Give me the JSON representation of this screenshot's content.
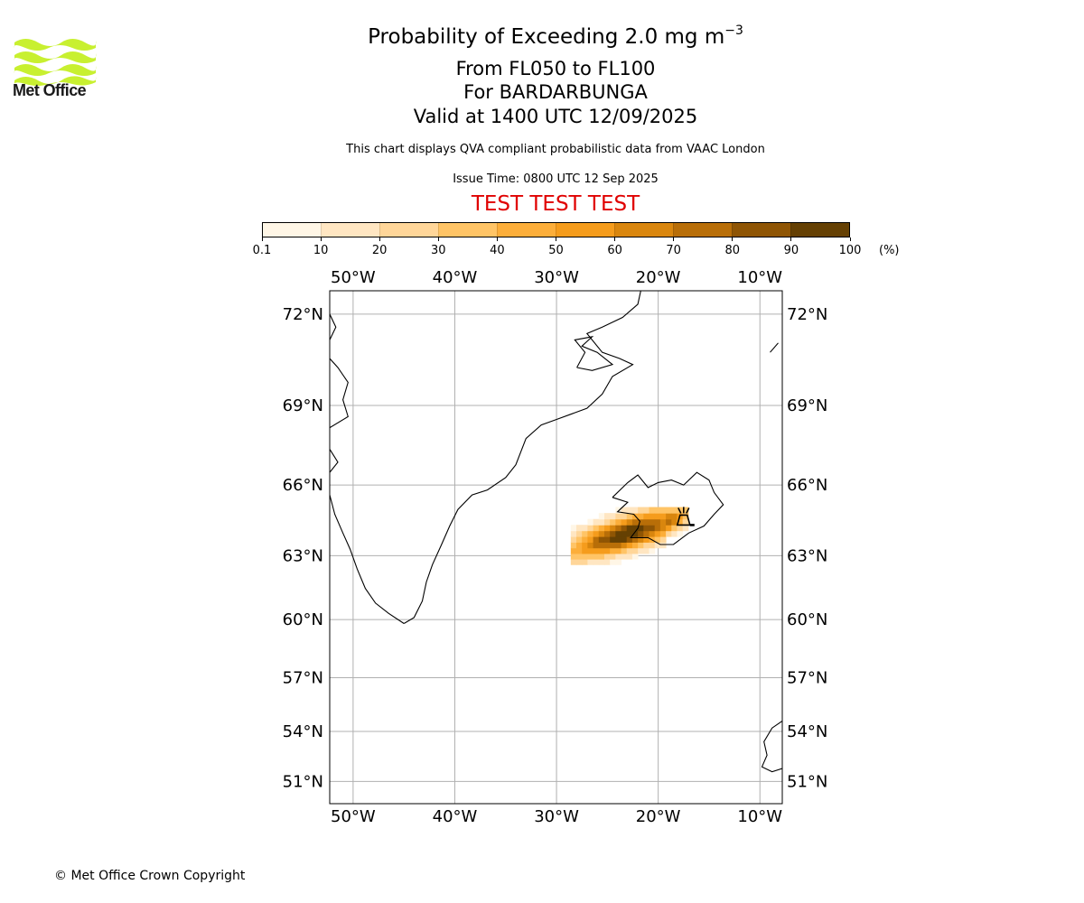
{
  "header": {
    "title_main": "Probability of Exceeding 2.0 mg m",
    "title_superscript": "−3",
    "flight_levels": "From FL050 to FL100",
    "volcano": "For BARDARBUNGA",
    "valid_time": "Valid at 1400 UTC 12/09/2025",
    "description": "This chart displays QVA compliant probabilistic data from VAAC London",
    "issue_time": "Issue Time: 0800 UTC 12 Sep 2025",
    "test_banner": "TEST TEST TEST"
  },
  "logo": {
    "text": "Met Office",
    "icon": "met-office-wave-logo",
    "color": "#c8f030"
  },
  "colorbar": {
    "ticks": [
      "0.1",
      "10",
      "20",
      "30",
      "40",
      "50",
      "60",
      "70",
      "80",
      "90",
      "100"
    ],
    "unit": "(%)",
    "colors": [
      "#fff6e6",
      "#ffe6c2",
      "#ffd699",
      "#ffc466",
      "#fcae3a",
      "#f59c1c",
      "#d9860e",
      "#b86e08",
      "#8f5504",
      "#654003"
    ]
  },
  "map": {
    "lon_range": [
      -52.3,
      -7.8
    ],
    "lat_range": [
      49.6,
      72.7
    ],
    "lon_ticks": [
      "50°W",
      "40°W",
      "30°W",
      "20°W",
      "10°W"
    ],
    "lat_ticks": [
      "72°N",
      "69°N",
      "66°N",
      "63°N",
      "60°N",
      "57°N",
      "54°N",
      "51°N"
    ],
    "volcano_marker": "volcano-icon",
    "gridline_color": "#b0b0b0"
  },
  "footer": {
    "copyright": "© Met Office Crown Copyright"
  }
}
